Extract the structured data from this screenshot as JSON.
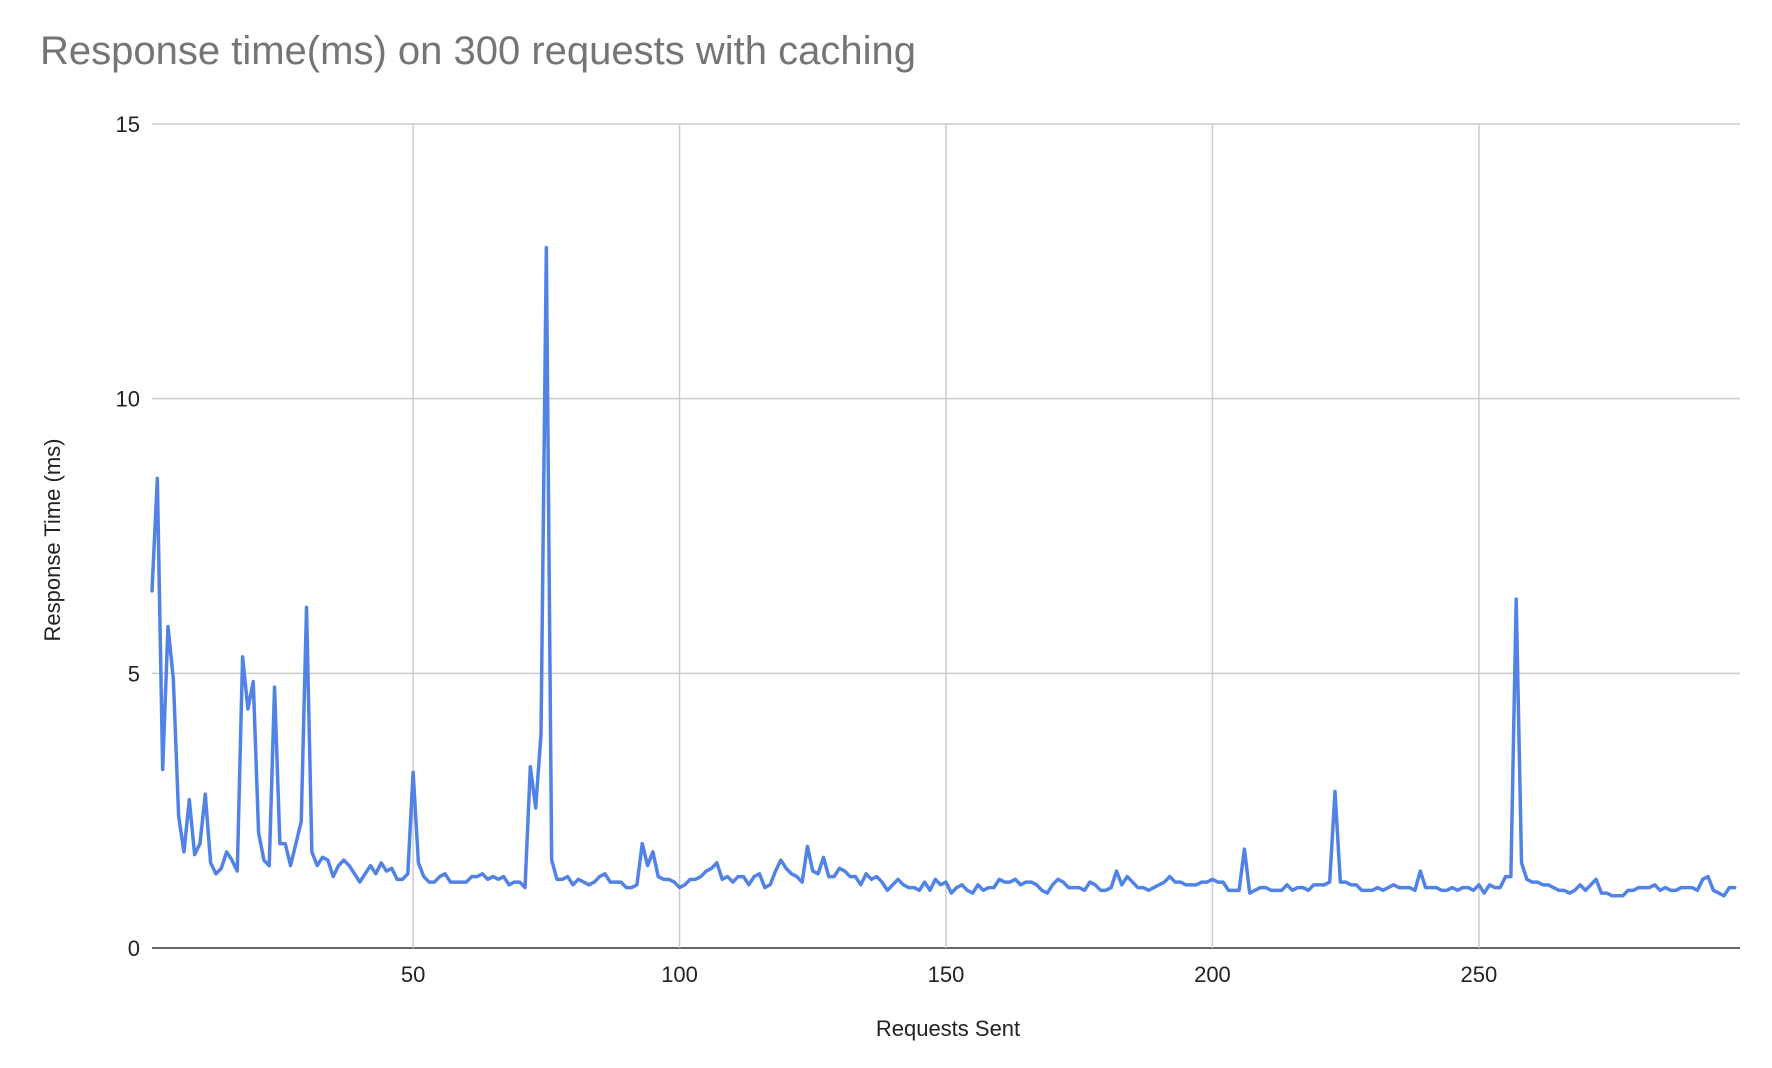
{
  "chart_data": {
    "type": "line",
    "title": "Response time(ms) on 300 requests with caching",
    "xlabel": "Requests Sent",
    "ylabel": "Response Time (ms)",
    "xlim": [
      1,
      299
    ],
    "ylim": [
      0,
      15
    ],
    "x_ticks": [
      50,
      100,
      150,
      200,
      250
    ],
    "y_ticks": [
      0,
      5,
      10,
      15
    ],
    "grid": true,
    "legend": "none",
    "colors": {
      "line": "#5183e6",
      "grid": "#cccccc",
      "title": "#757575"
    },
    "series": [
      {
        "values": [
          6.5,
          8.55,
          3.25,
          5.85,
          4.9,
          2.4,
          1.75,
          2.7,
          1.7,
          1.9,
          2.8,
          1.55,
          1.35,
          1.45,
          1.75,
          1.6,
          1.4,
          5.3,
          4.35,
          4.85,
          2.1,
          1.6,
          1.5,
          4.75,
          1.9,
          1.9,
          1.5,
          1.9,
          2.3,
          6.2,
          1.75,
          1.5,
          1.65,
          1.6,
          1.3,
          1.5,
          1.6,
          1.5,
          1.35,
          1.2,
          1.35,
          1.5,
          1.35,
          1.55,
          1.4,
          1.45,
          1.25,
          1.25,
          1.35,
          3.2,
          1.55,
          1.3,
          1.2,
          1.2,
          1.3,
          1.35,
          1.2,
          1.2,
          1.2,
          1.2,
          1.3,
          1.3,
          1.35,
          1.25,
          1.3,
          1.25,
          1.3,
          1.15,
          1.2,
          1.2,
          1.1,
          3.3,
          2.55,
          3.9,
          12.75,
          1.6,
          1.25,
          1.25,
          1.3,
          1.15,
          1.25,
          1.2,
          1.15,
          1.2,
          1.3,
          1.35,
          1.2,
          1.2,
          1.2,
          1.1,
          1.1,
          1.15,
          1.9,
          1.5,
          1.75,
          1.3,
          1.25,
          1.25,
          1.2,
          1.1,
          1.15,
          1.25,
          1.25,
          1.3,
          1.4,
          1.45,
          1.55,
          1.25,
          1.3,
          1.2,
          1.3,
          1.3,
          1.15,
          1.3,
          1.35,
          1.1,
          1.15,
          1.4,
          1.6,
          1.45,
          1.35,
          1.3,
          1.2,
          1.85,
          1.4,
          1.35,
          1.65,
          1.3,
          1.3,
          1.45,
          1.4,
          1.3,
          1.3,
          1.15,
          1.35,
          1.25,
          1.3,
          1.2,
          1.05,
          1.15,
          1.25,
          1.15,
          1.1,
          1.1,
          1.05,
          1.2,
          1.05,
          1.25,
          1.15,
          1.2,
          1.0,
          1.1,
          1.15,
          1.05,
          1.0,
          1.15,
          1.05,
          1.1,
          1.1,
          1.25,
          1.2,
          1.2,
          1.25,
          1.15,
          1.2,
          1.2,
          1.15,
          1.05,
          1.0,
          1.15,
          1.25,
          1.2,
          1.1,
          1.1,
          1.1,
          1.05,
          1.2,
          1.15,
          1.05,
          1.05,
          1.1,
          1.4,
          1.15,
          1.3,
          1.2,
          1.1,
          1.1,
          1.05,
          1.1,
          1.15,
          1.2,
          1.3,
          1.2,
          1.2,
          1.15,
          1.15,
          1.15,
          1.2,
          1.2,
          1.25,
          1.2,
          1.2,
          1.05,
          1.05,
          1.05,
          1.8,
          1.0,
          1.05,
          1.1,
          1.1,
          1.05,
          1.05,
          1.05,
          1.15,
          1.05,
          1.1,
          1.1,
          1.05,
          1.15,
          1.15,
          1.15,
          1.2,
          2.85,
          1.2,
          1.2,
          1.15,
          1.15,
          1.05,
          1.05,
          1.05,
          1.1,
          1.05,
          1.1,
          1.15,
          1.1,
          1.1,
          1.1,
          1.05,
          1.4,
          1.1,
          1.1,
          1.1,
          1.05,
          1.05,
          1.1,
          1.05,
          1.1,
          1.1,
          1.05,
          1.15,
          1.0,
          1.15,
          1.1,
          1.1,
          1.3,
          1.3,
          6.35,
          1.55,
          1.25,
          1.2,
          1.2,
          1.15,
          1.15,
          1.1,
          1.05,
          1.05,
          1.0,
          1.05,
          1.15,
          1.05,
          1.15,
          1.25,
          1.0,
          1.0,
          0.95,
          0.95,
          0.95,
          1.05,
          1.05,
          1.1,
          1.1,
          1.1,
          1.15,
          1.05,
          1.1,
          1.05,
          1.05,
          1.1,
          1.1,
          1.1,
          1.05,
          1.25,
          1.3,
          1.05,
          1.0,
          0.95,
          1.1,
          1.1
        ]
      }
    ]
  }
}
